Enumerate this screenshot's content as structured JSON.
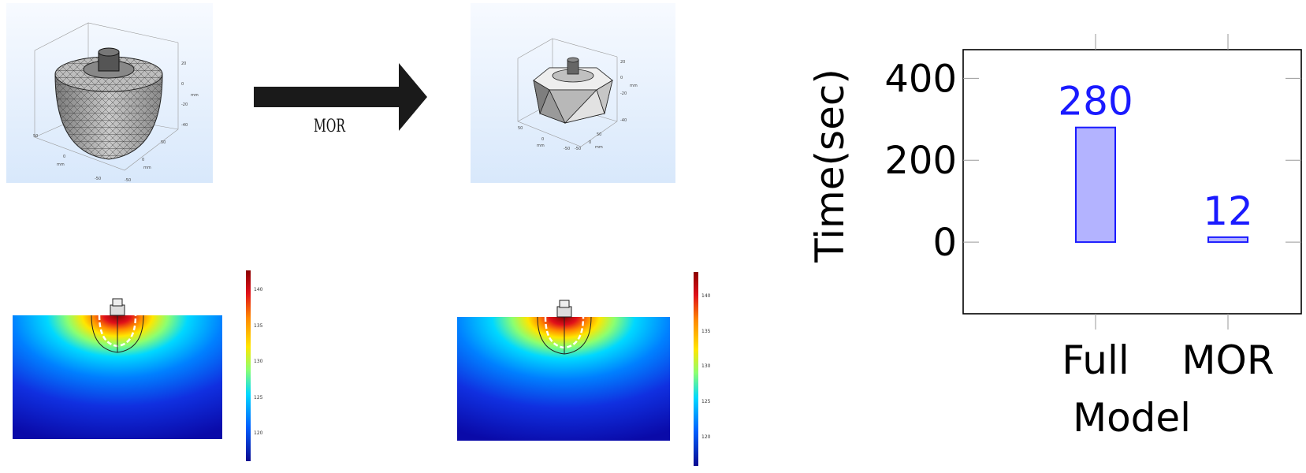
{
  "arrow_label": "MOR",
  "mesh_full": {
    "z_ticks": [
      "20",
      "0",
      "-20",
      "-40"
    ],
    "x_ticks": [
      "50",
      "0",
      "-50"
    ],
    "y_ticks": [
      "50",
      "0",
      "-50"
    ],
    "unit": "mm"
  },
  "mesh_mor": {
    "z_ticks": [
      "20",
      "0",
      "-20",
      "-40"
    ],
    "x_ticks": [
      "50",
      "0",
      "-50"
    ],
    "y_ticks": [
      "50",
      "0",
      "-50"
    ],
    "unit": "mm"
  },
  "colorbar_full": {
    "ticks": [
      "140",
      "135",
      "130",
      "125",
      "120"
    ]
  },
  "colorbar_mor": {
    "ticks": [
      "140",
      "135",
      "130",
      "125",
      "120"
    ]
  },
  "colors": {
    "series": "#1a1aff",
    "series_fill": "#b3b3ff",
    "frame": "#000000"
  },
  "chart_data": {
    "type": "bar",
    "categories": [
      "Full",
      "MOR"
    ],
    "values": [
      280,
      12
    ],
    "data_labels": [
      "280",
      "12"
    ],
    "xlabel": "Model",
    "ylabel": "Time(sec)",
    "yticks": [
      0,
      200,
      400
    ],
    "ylim": [
      -175,
      470
    ],
    "grid": false
  }
}
